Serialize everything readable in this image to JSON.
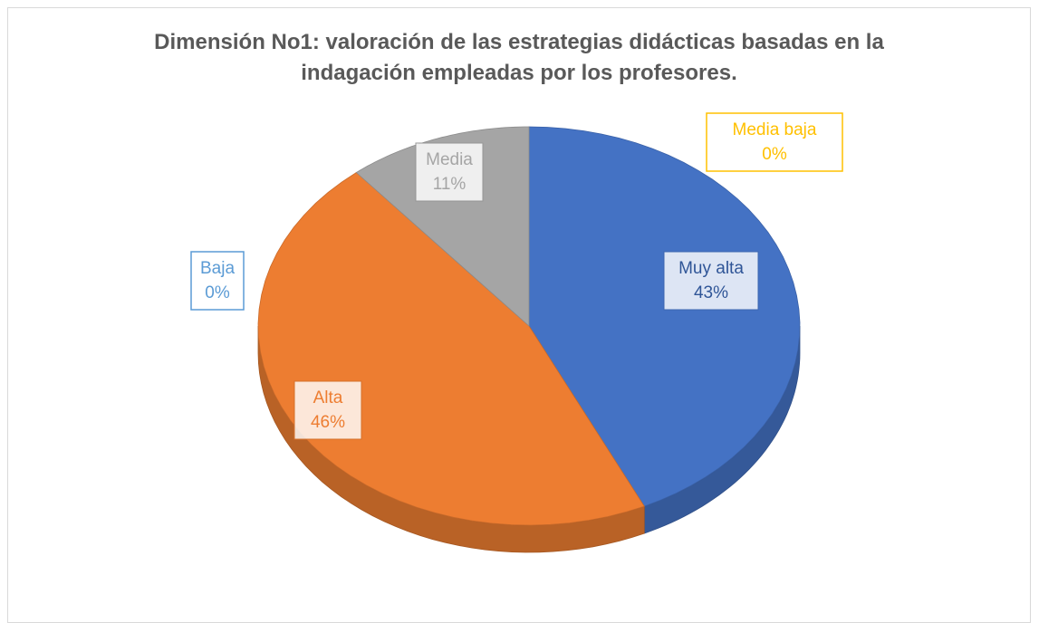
{
  "chart_data": {
    "type": "pie",
    "title": "Dimensión No1: valoración de las estrategias didácticas basadas en la indagación empleadas por los profesores.",
    "categories": [
      "Muy alta",
      "Alta",
      "Media",
      "Media baja",
      "Baja"
    ],
    "values": [
      43,
      46,
      11,
      0,
      0
    ],
    "value_labels": [
      "43%",
      "46%",
      "11%",
      "0%",
      "0%"
    ],
    "colors": [
      "#4472c4",
      "#ed7d31",
      "#a5a5a5",
      "#ffc000",
      "#5b9bd5"
    ]
  }
}
